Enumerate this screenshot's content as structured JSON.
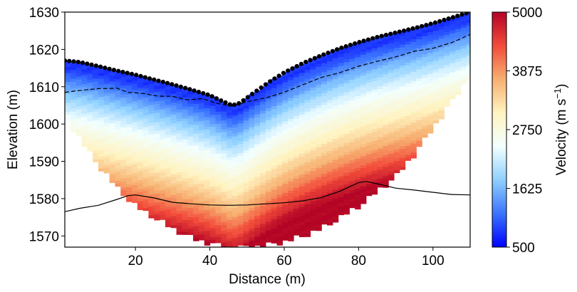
{
  "chart_data": {
    "type": "heatmap",
    "xlabel": "Distance (m)",
    "ylabel": "Elevation (m)",
    "xlim": [
      1,
      110
    ],
    "ylim": [
      1567,
      1630
    ],
    "x_ticks": [
      20,
      40,
      60,
      80,
      100
    ],
    "y_ticks": [
      1570,
      1580,
      1590,
      1600,
      1610,
      1620,
      1630
    ],
    "grid": false,
    "colorbar": {
      "label_main": "Velocity (m s",
      "label_exp": "−1",
      "label_close": ")",
      "range": [
        500,
        5000
      ],
      "ticks": [
        "500",
        "1625",
        "2750",
        "3875",
        "5000"
      ],
      "colormap": [
        "#0000ff",
        "#3b74ff",
        "#8fd0ff",
        "#f2ffff",
        "#fff3c0",
        "#f7b070",
        "#f24b3a",
        "#b40426"
      ]
    },
    "surface_geophones": {
      "marker_color": "#000000",
      "points": [
        [
          1,
          1617
        ],
        [
          5,
          1616.6
        ],
        [
          10,
          1615.5
        ],
        [
          15,
          1614.3
        ],
        [
          20,
          1613.2
        ],
        [
          25,
          1611.9
        ],
        [
          30,
          1610.6
        ],
        [
          35,
          1609.2
        ],
        [
          40,
          1607.7
        ],
        [
          43,
          1606.3
        ],
        [
          46,
          1605
        ],
        [
          48,
          1605.6
        ],
        [
          52,
          1608.5
        ],
        [
          56,
          1611.3
        ],
        [
          60,
          1613.8
        ],
        [
          65,
          1616.3
        ],
        [
          70,
          1618.4
        ],
        [
          75,
          1620.3
        ],
        [
          80,
          1621.9
        ],
        [
          85,
          1623.3
        ],
        [
          90,
          1624.5
        ],
        [
          95,
          1625.7
        ],
        [
          100,
          1627
        ],
        [
          105,
          1628.5
        ],
        [
          110,
          1630
        ]
      ]
    },
    "velocity_base": [
      [
        1,
        1602
      ],
      [
        5,
        1596
      ],
      [
        10,
        1589
      ],
      [
        15,
        1583
      ],
      [
        20,
        1578
      ],
      [
        25,
        1575
      ],
      [
        30,
        1572
      ],
      [
        35,
        1569.5
      ],
      [
        40,
        1568
      ],
      [
        45,
        1567
      ],
      [
        50,
        1567
      ],
      [
        55,
        1567.5
      ],
      [
        60,
        1568.5
      ],
      [
        65,
        1570
      ],
      [
        70,
        1572
      ],
      [
        75,
        1575
      ],
      [
        80,
        1578
      ],
      [
        85,
        1582
      ],
      [
        90,
        1586
      ],
      [
        95,
        1592
      ],
      [
        100,
        1599
      ],
      [
        105,
        1606
      ],
      [
        110,
        1613
      ]
    ],
    "velocity_layers": [
      {
        "velocity": 800,
        "depth": 2
      },
      {
        "velocity": 1600,
        "depth": 8
      },
      {
        "velocity": 2400,
        "depth": 15
      },
      {
        "velocity": 3000,
        "depth": 22
      },
      {
        "velocity": 3700,
        "depth": 29
      },
      {
        "velocity": 4400,
        "depth": 35
      },
      {
        "velocity": 5000,
        "depth": 40
      }
    ],
    "dashed_line": [
      [
        1,
        1608.5
      ],
      [
        5,
        1609
      ],
      [
        10,
        1609.5
      ],
      [
        15,
        1609.6
      ],
      [
        18,
        1608.5
      ],
      [
        22,
        1608.2
      ],
      [
        26,
        1607.5
      ],
      [
        30,
        1607.4
      ],
      [
        34,
        1606.5
      ],
      [
        38,
        1606.8
      ],
      [
        42,
        1605.5
      ],
      [
        46,
        1604.8
      ],
      [
        50,
        1606
      ],
      [
        55,
        1607
      ],
      [
        60,
        1608.5
      ],
      [
        65,
        1610.5
      ],
      [
        70,
        1612.5
      ],
      [
        75,
        1613.8
      ],
      [
        80,
        1615.5
      ],
      [
        85,
        1616.8
      ],
      [
        90,
        1618
      ],
      [
        95,
        1619.5
      ],
      [
        100,
        1620.3
      ],
      [
        105,
        1621.8
      ],
      [
        110,
        1624
      ]
    ],
    "solid_line": [
      [
        1,
        1576.5
      ],
      [
        5,
        1577.4
      ],
      [
        10,
        1578.2
      ],
      [
        15,
        1579.8
      ],
      [
        18,
        1580.8
      ],
      [
        20,
        1581
      ],
      [
        25,
        1580.2
      ],
      [
        30,
        1579
      ],
      [
        35,
        1578.6
      ],
      [
        40,
        1578.3
      ],
      [
        45,
        1578.2
      ],
      [
        50,
        1578.3
      ],
      [
        55,
        1578.6
      ],
      [
        60,
        1578.9
      ],
      [
        65,
        1579.4
      ],
      [
        70,
        1580.3
      ],
      [
        75,
        1582
      ],
      [
        80,
        1584.3
      ],
      [
        82,
        1584.6
      ],
      [
        85,
        1584
      ],
      [
        90,
        1582.8
      ],
      [
        95,
        1582.3
      ],
      [
        100,
        1581.7
      ],
      [
        105,
        1581.1
      ],
      [
        110,
        1581
      ]
    ]
  }
}
